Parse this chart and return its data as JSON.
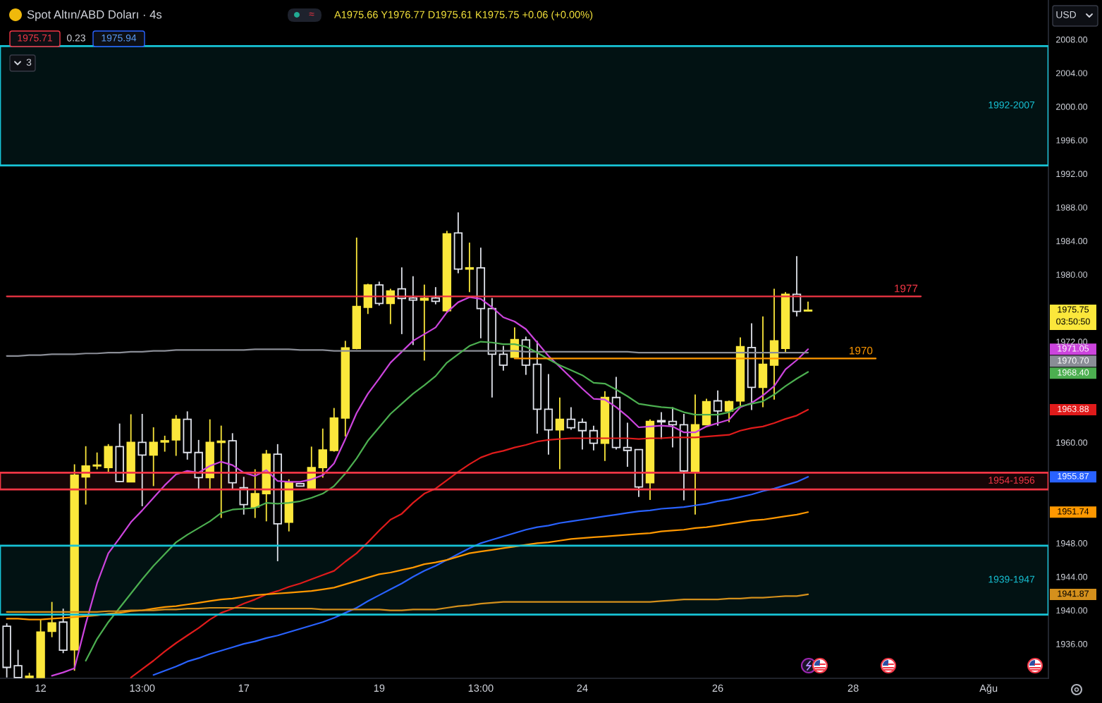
{
  "chart_data": {
    "type": "candlestick",
    "title": "Spot Altın/ABD Doları · 4s",
    "subtitle": "A1975.66 Y1976.77 D1975.61 K1975.75 +0.06 (+0.00%)",
    "annotations": [
      "1975.71",
      "0.23",
      "1975.94",
      "3",
      "USD",
      "≈",
      "03:50:50",
      "1971.05",
      "1970.70",
      "1968.40",
      "1963.88",
      "1955.87",
      "1951.74",
      "1941.87"
    ],
    "categories": [
      null,
      null,
      null,
      "12",
      null,
      null,
      null,
      null,
      null,
      null,
      null,
      null,
      "13:00",
      null,
      null,
      null,
      null,
      null,
      null,
      null,
      null,
      "17",
      null,
      null,
      null,
      null,
      null,
      null,
      null,
      null,
      null,
      null,
      null,
      "19",
      null,
      null,
      null,
      null,
      null,
      null,
      null,
      null,
      "13:00",
      null,
      null,
      null,
      null,
      null,
      null,
      null,
      null,
      "24",
      null,
      null,
      null,
      null,
      null,
      null,
      null,
      null,
      null,
      null,
      null,
      "26",
      null,
      null,
      null,
      null,
      null,
      null,
      null,
      null,
      null,
      null,
      null,
      "28",
      null,
      null,
      null,
      null,
      null,
      null,
      null,
      null,
      null,
      null,
      null,
      "Ağu",
      null,
      null,
      null,
      null,
      null
    ],
    "ohlc": [
      [
        1938.1,
        1938.45,
        1932.0,
        1933.2
      ],
      [
        1933.4,
        1935.3,
        1932.0,
        1932.0
      ],
      [
        1932.0,
        1932.55,
        1932.0,
        1932.15
      ],
      [
        1932.0,
        1938.95,
        1932.0,
        1937.4
      ],
      [
        1937.5,
        1941.0,
        1936.8,
        1938.5
      ],
      [
        1938.6,
        1940.2,
        1934.9,
        1935.25
      ],
      [
        1935.3,
        1957.4,
        1932.8,
        1956.1
      ],
      [
        1955.9,
        1959.55,
        1952.6,
        1957.2
      ],
      [
        1957.2,
        1958.8,
        1956.8,
        1957.3
      ],
      [
        1957.0,
        1959.8,
        1956.45,
        1959.5
      ],
      [
        1959.5,
        1962.25,
        1955.3,
        1955.35
      ],
      [
        1955.3,
        1963.35,
        1955.3,
        1960.0
      ],
      [
        1960.0,
        1963.4,
        1952.4,
        1958.5
      ],
      [
        1958.5,
        1961.8,
        1954.8,
        1960.0
      ],
      [
        1960.05,
        1960.8,
        1958.9,
        1960.2
      ],
      [
        1960.3,
        1963.25,
        1958.4,
        1962.75
      ],
      [
        1962.75,
        1963.7,
        1957.95,
        1958.8
      ],
      [
        1958.8,
        1960.3,
        1954.35,
        1955.8
      ],
      [
        1955.8,
        1962.75,
        1954.4,
        1960.0
      ],
      [
        1960.0,
        1962.0,
        1951.0,
        1960.15
      ],
      [
        1960.2,
        1961.1,
        1954.4,
        1955.2
      ],
      [
        1954.6,
        1955.9,
        1951.4,
        1952.6
      ],
      [
        1952.3,
        1956.8,
        1951.0,
        1953.9
      ],
      [
        1953.9,
        1959.1,
        1950.6,
        1958.6
      ],
      [
        1958.6,
        1959.8,
        1945.85,
        1950.3
      ],
      [
        1950.5,
        1955.6,
        1949.4,
        1955.2
      ],
      [
        1955.1,
        1955.1,
        1954.8,
        1954.8
      ],
      [
        1954.5,
        1959.5,
        1954.5,
        1957.0
      ],
      [
        1957.0,
        1961.65,
        1955.8,
        1959.1
      ],
      [
        1959.05,
        1964.1,
        1958.9,
        1962.9
      ],
      [
        1962.9,
        1972.1,
        1960.7,
        1971.25
      ],
      [
        1971.2,
        1984.4,
        1971.1,
        1976.2
      ],
      [
        1976.1,
        1978.9,
        1975.3,
        1978.75
      ],
      [
        1978.75,
        1979.15,
        1976.3,
        1976.55
      ],
      [
        1976.55,
        1978.3,
        1974.1,
        1978.05
      ],
      [
        1978.3,
        1980.85,
        1972.9,
        1977.15
      ],
      [
        1977.2,
        1979.8,
        1971.6,
        1976.95
      ],
      [
        1976.95,
        1978.8,
        1969.75,
        1977.15
      ],
      [
        1977.2,
        1978.5,
        1976.45,
        1976.8
      ],
      [
        1975.7,
        1985.2,
        1975.55,
        1984.85
      ],
      [
        1984.95,
        1987.4,
        1980.15,
        1980.65
      ],
      [
        1980.65,
        1983.8,
        1977.9,
        1980.8
      ],
      [
        1980.8,
        1983.2,
        1972.4,
        1975.95
      ],
      [
        1975.95,
        1977.2,
        1965.35,
        1970.5
      ],
      [
        1970.5,
        1971.5,
        1968.55,
        1969.2
      ],
      [
        1970.15,
        1973.7,
        1970.15,
        1972.25
      ],
      [
        1972.2,
        1972.6,
        1968.05,
        1969.2
      ],
      [
        1969.3,
        1972.1,
        1961.05,
        1963.95
      ],
      [
        1963.95,
        1968.15,
        1958.55,
        1961.5
      ],
      [
        1961.5,
        1965.35,
        1956.8,
        1962.75
      ],
      [
        1962.75,
        1964.2,
        1961.5,
        1961.75
      ],
      [
        1962.4,
        1962.85,
        1959.15,
        1961.4
      ],
      [
        1961.4,
        1962.0,
        1959.05,
        1959.9
      ],
      [
        1959.9,
        1966.1,
        1957.8,
        1965.35
      ],
      [
        1965.35,
        1967.8,
        1959.15,
        1959.4
      ],
      [
        1959.4,
        1962.35,
        1957.1,
        1959.05
      ],
      [
        1959.15,
        1959.2,
        1953.5,
        1954.7
      ],
      [
        1955.2,
        1962.75,
        1953.15,
        1962.5
      ],
      [
        1962.6,
        1963.6,
        1960.4,
        1962.45
      ],
      [
        1962.5,
        1964.2,
        1959.4,
        1962.1
      ],
      [
        1962.1,
        1963.4,
        1953.1,
        1956.6
      ],
      [
        1956.5,
        1965.7,
        1951.4,
        1962.1
      ],
      [
        1962.1,
        1965.2,
        1962.1,
        1964.85
      ],
      [
        1964.95,
        1966.2,
        1962.0,
        1963.75
      ],
      [
        1963.75,
        1965.0,
        1962.4,
        1964.85
      ],
      [
        1964.95,
        1972.5,
        1964.2,
        1971.4
      ],
      [
        1971.3,
        1974.2,
        1963.85,
        1966.55
      ],
      [
        1966.55,
        1975.0,
        1964.2,
        1969.3
      ],
      [
        1969.2,
        1978.3,
        1965.1,
        1972.1
      ],
      [
        1971.2,
        1977.9,
        1970.75,
        1977.65
      ],
      [
        1977.65,
        1982.2,
        1975.0,
        1975.6
      ],
      [
        1975.66,
        1976.77,
        1975.61,
        1975.75
      ],
      null,
      null,
      null,
      null,
      null,
      null,
      null,
      null,
      null,
      null,
      null,
      null,
      null,
      null,
      null,
      null,
      null,
      null,
      null,
      null,
      null
    ],
    "colors": [
      "#e0e3eb",
      "#e0e3eb",
      "#fbe73b",
      "#fbe73b",
      "#fbe73b",
      "#e0e3eb",
      "#fbe73b",
      "#fbe73b",
      "#fbe73b",
      "#fbe73b",
      "#e0e3eb",
      "#fbe73b",
      "#e0e3eb",
      "#fbe73b",
      "#fbe73b",
      "#fbe73b",
      "#e0e3eb",
      "#e0e3eb",
      "#fbe73b",
      "#fbe73b",
      "#e0e3eb",
      "#e0e3eb",
      "#fbe73b",
      "#fbe73b",
      "#e0e3eb",
      "#fbe73b",
      "#e0e3eb",
      "#fbe73b",
      "#fbe73b",
      "#fbe73b",
      "#fbe73b",
      "#fbe73b",
      "#fbe73b",
      "#e0e3eb",
      "#fbe73b",
      "#e0e3eb",
      "#e0e3eb",
      "#fbe73b",
      "#e0e3eb",
      "#fbe73b",
      "#e0e3eb",
      "#fbe73b",
      "#e0e3eb",
      "#e0e3eb",
      "#e0e3eb",
      "#fbe73b",
      "#e0e3eb",
      "#e0e3eb",
      "#e0e3eb",
      "#fbe73b",
      "#e0e3eb",
      "#e0e3eb",
      "#e0e3eb",
      "#fbe73b",
      "#e0e3eb",
      "#e0e3eb",
      "#e0e3eb",
      "#fbe73b",
      "#e0e3eb",
      "#e0e3eb",
      "#e0e3eb",
      "#fbe73b",
      "#fbe73b",
      "#e0e3eb",
      "#fbe73b",
      "#fbe73b",
      "#e0e3eb",
      "#fbe73b",
      "#fbe73b",
      "#fbe73b",
      "#e0e3eb",
      "#fbe73b",
      null,
      null,
      null,
      null,
      null,
      null,
      null,
      null,
      null,
      null,
      null,
      null,
      null,
      null,
      null,
      null,
      null,
      null,
      null,
      null,
      null
    ],
    "value_labels": [
      null,
      null,
      null,
      null,
      null,
      null,
      null,
      null,
      null,
      null,
      null,
      null,
      null,
      null,
      null,
      null,
      null,
      null,
      null,
      null,
      null,
      null,
      null,
      null,
      null,
      null,
      null,
      null,
      null,
      null,
      null,
      null,
      null,
      null,
      null,
      null,
      null,
      null,
      null,
      null,
      null,
      null,
      null,
      null,
      null,
      null,
      null,
      null,
      null,
      null,
      null,
      null,
      null,
      null,
      null,
      null,
      null,
      null,
      null,
      null,
      null,
      null,
      null,
      null,
      null,
      null,
      null,
      null,
      null,
      null,
      null,
      "1975.75",
      null,
      null,
      null,
      null,
      null,
      null,
      null,
      null,
      null,
      null,
      null,
      null,
      null,
      null,
      null,
      null,
      null,
      null,
      null,
      null,
      null
    ],
    "series": [
      {
        "type": "line",
        "color": "#cc44dd",
        "values": [
          null,
          null,
          null,
          null,
          1932.2,
          1932.6,
          1933.1,
          1938.4,
          1943.2,
          1946.8,
          1948.6,
          1950.5,
          1951.9,
          1953.4,
          1954.9,
          1956.2,
          1956.6,
          1956.4,
          1957.2,
          1957.7,
          1957.3,
          1956.4,
          1956.0,
          1956.7,
          1955.4,
          1955.3,
          1955.3,
          1955.6,
          1956.1,
          1957.5,
          1960.4,
          1963.5,
          1965.8,
          1967.6,
          1969.5,
          1970.8,
          1972.1,
          1972.9,
          1973.7,
          1975.5,
          1976.7,
          1977.3,
          1977.1,
          1976.1,
          1974.9,
          1974.4,
          1973.5,
          1971.9,
          1970.3,
          1969.0,
          1967.7,
          1966.4,
          1965.2,
          1965.1,
          1964.2,
          1963.1,
          1961.8,
          1961.9,
          1962.0,
          1961.9,
          1961.2,
          1961.2,
          1961.9,
          1962.3,
          1962.7,
          1964.2,
          1964.7,
          1965.6,
          1966.7,
          1968.7,
          1969.8,
          1971.1,
          null,
          null,
          null,
          null,
          null,
          null,
          null,
          null,
          null,
          null,
          null,
          null,
          null,
          null,
          null,
          null,
          null,
          null,
          null,
          null,
          null
        ]
      },
      {
        "type": "line",
        "color": "#8a8d96",
        "values": [
          1970.3,
          1970.3,
          1970.4,
          1970.4,
          1970.5,
          1970.5,
          1970.5,
          1970.6,
          1970.6,
          1970.7,
          1970.7,
          1970.8,
          1970.8,
          1970.9,
          1970.9,
          1971.0,
          1971.0,
          1971.0,
          1971.0,
          1971.0,
          1971.0,
          1971.0,
          1971.1,
          1971.1,
          1971.1,
          1971.1,
          1971.0,
          1971.0,
          1971.0,
          1970.9,
          1970.9,
          1970.9,
          1970.9,
          1970.9,
          1970.9,
          1970.9,
          1970.9,
          1970.9,
          1970.9,
          1970.9,
          1970.9,
          1970.9,
          1970.9,
          1970.9,
          1970.9,
          1970.9,
          1970.8,
          1970.8,
          1970.8,
          1970.8,
          1970.8,
          1970.8,
          1970.8,
          1970.8,
          1970.8,
          1970.8,
          1970.7,
          1970.7,
          1970.7,
          1970.7,
          1970.7,
          1970.7,
          1970.7,
          1970.7,
          1970.7,
          1970.7,
          1970.7,
          1970.7,
          1970.7,
          1970.7,
          1970.7,
          1970.7,
          null,
          null,
          null,
          null,
          null,
          null,
          null,
          null,
          null,
          null,
          null,
          null,
          null,
          null,
          null,
          null,
          null,
          null,
          null,
          null,
          null
        ]
      },
      {
        "type": "line",
        "color": "#4caf50",
        "values": [
          null,
          null,
          null,
          null,
          null,
          null,
          null,
          1934.0,
          1936.6,
          1938.6,
          1940.3,
          1942.0,
          1943.7,
          1945.3,
          1946.7,
          1948.1,
          1949.0,
          1949.8,
          1950.6,
          1951.6,
          1952.0,
          1952.1,
          1952.2,
          1952.8,
          1952.7,
          1952.8,
          1953.0,
          1953.4,
          1953.9,
          1954.8,
          1956.3,
          1958.1,
          1960.2,
          1961.8,
          1963.4,
          1964.6,
          1965.8,
          1966.8,
          1967.9,
          1969.5,
          1970.5,
          1971.5,
          1972.0,
          1971.9,
          1971.7,
          1971.7,
          1971.4,
          1970.7,
          1969.9,
          1969.2,
          1968.6,
          1968.0,
          1967.1,
          1967.0,
          1966.3,
          1965.5,
          1964.6,
          1964.4,
          1964.2,
          1964.1,
          1963.6,
          1963.3,
          1963.3,
          1963.3,
          1963.6,
          1964.3,
          1964.6,
          1964.9,
          1965.7,
          1966.7,
          1967.6,
          1968.4,
          null,
          null,
          null,
          null,
          null,
          null,
          null,
          null,
          null,
          null,
          null,
          null,
          null,
          null,
          null,
          null,
          null,
          null,
          null,
          null,
          null
        ]
      },
      {
        "type": "line",
        "color": "#e01b1b",
        "values": [
          null,
          null,
          null,
          null,
          null,
          null,
          null,
          null,
          null,
          null,
          null,
          1932.0,
          1933.0,
          1934.0,
          1935.1,
          1936.1,
          1937.0,
          1937.9,
          1938.9,
          1939.7,
          1940.2,
          1940.8,
          1941.3,
          1941.9,
          1942.3,
          1942.8,
          1943.2,
          1943.7,
          1944.2,
          1944.7,
          1945.8,
          1946.8,
          1948.1,
          1949.5,
          1950.8,
          1951.5,
          1952.8,
          1953.9,
          1954.5,
          1955.5,
          1956.5,
          1957.4,
          1958.2,
          1958.7,
          1959.0,
          1959.4,
          1959.7,
          1960.1,
          1960.3,
          1960.4,
          1960.5,
          1960.5,
          1960.5,
          1960.5,
          1960.5,
          1960.5,
          1960.4,
          1960.5,
          1960.5,
          1960.6,
          1960.6,
          1960.6,
          1960.7,
          1960.8,
          1960.9,
          1961.4,
          1961.7,
          1961.9,
          1962.3,
          1962.8,
          1963.2,
          1963.9,
          null,
          null,
          null,
          null,
          null,
          null,
          null,
          null,
          null,
          null,
          null,
          null,
          null,
          null,
          null,
          null,
          null,
          null,
          null,
          null,
          null
        ]
      },
      {
        "type": "line",
        "color": "#2962ff",
        "values": [
          null,
          null,
          null,
          null,
          null,
          null,
          null,
          null,
          null,
          null,
          null,
          null,
          null,
          1932.3,
          1932.8,
          1933.3,
          1933.9,
          1934.3,
          1934.8,
          1935.2,
          1935.6,
          1936.0,
          1936.3,
          1936.7,
          1937.0,
          1937.4,
          1937.8,
          1938.2,
          1938.6,
          1939.1,
          1939.7,
          1940.3,
          1941.1,
          1941.8,
          1942.5,
          1943.2,
          1944.0,
          1944.7,
          1945.3,
          1946.0,
          1946.7,
          1947.4,
          1948.0,
          1948.4,
          1948.8,
          1949.2,
          1949.6,
          1949.9,
          1950.1,
          1950.4,
          1950.6,
          1950.8,
          1951.0,
          1951.2,
          1951.4,
          1951.6,
          1951.8,
          1951.9,
          1952.1,
          1952.2,
          1952.3,
          1952.5,
          1952.7,
          1953.0,
          1953.2,
          1953.5,
          1953.8,
          1954.2,
          1954.5,
          1954.9,
          1955.3,
          1955.9,
          null,
          null,
          null,
          null,
          null,
          null,
          null,
          null,
          null,
          null,
          null,
          null,
          null,
          null,
          null,
          null,
          null,
          null,
          null,
          null,
          null
        ]
      },
      {
        "type": "line",
        "color": "#ff9800",
        "values": [
          1939.0,
          1939.0,
          1938.9,
          1938.9,
          1939.0,
          1939.1,
          1939.2,
          1939.3,
          1939.4,
          1939.6,
          1939.7,
          1939.9,
          1940.0,
          1940.2,
          1940.4,
          1940.5,
          1940.7,
          1940.9,
          1941.1,
          1941.3,
          1941.4,
          1941.6,
          1941.8,
          1941.9,
          1942.0,
          1942.1,
          1942.2,
          1942.3,
          1942.5,
          1942.7,
          1943.1,
          1943.5,
          1943.9,
          1944.3,
          1944.5,
          1944.8,
          1945.1,
          1945.5,
          1945.7,
          1946.0,
          1946.4,
          1946.8,
          1947.0,
          1947.2,
          1947.4,
          1947.6,
          1947.8,
          1948.0,
          1948.1,
          1948.3,
          1948.5,
          1948.6,
          1948.7,
          1948.8,
          1948.9,
          1949.0,
          1949.1,
          1949.2,
          1949.4,
          1949.5,
          1949.6,
          1949.8,
          1949.9,
          1950.1,
          1950.3,
          1950.5,
          1950.7,
          1950.8,
          1951.0,
          1951.2,
          1951.4,
          1951.7,
          null,
          null,
          null,
          null,
          null,
          null,
          null,
          null,
          null,
          null,
          null,
          null,
          null,
          null,
          null,
          null,
          null,
          null,
          null,
          null,
          null
        ]
      },
      {
        "type": "line",
        "color": "#d4901c",
        "values": [
          1939.8,
          1939.8,
          1939.8,
          1939.8,
          1939.8,
          1939.8,
          1939.8,
          1939.8,
          1939.8,
          1939.9,
          1939.9,
          1940.0,
          1940.0,
          1940.0,
          1940.1,
          1940.1,
          1940.2,
          1940.2,
          1940.3,
          1940.3,
          1940.3,
          1940.3,
          1940.2,
          1940.2,
          1940.2,
          1940.2,
          1940.2,
          1940.2,
          1940.1,
          1940.1,
          1940.1,
          1940.1,
          1940.1,
          1940.1,
          1940.0,
          1940.0,
          1940.1,
          1940.1,
          1940.1,
          1940.3,
          1940.5,
          1940.6,
          1940.8,
          1940.9,
          1941.0,
          1941.0,
          1941.0,
          1941.0,
          1941.0,
          1941.0,
          1941.0,
          1941.0,
          1941.0,
          1941.0,
          1941.0,
          1941.0,
          1941.0,
          1941.0,
          1941.1,
          1941.2,
          1941.3,
          1941.3,
          1941.3,
          1941.3,
          1941.4,
          1941.4,
          1941.5,
          1941.5,
          1941.6,
          1941.7,
          1941.7,
          1941.9,
          null,
          null,
          null,
          null,
          null,
          null,
          null,
          null,
          null,
          null,
          null,
          null,
          null,
          null,
          null,
          null,
          null,
          null,
          null,
          null,
          null
        ]
      },
      {
        "type": "line",
        "name": "1977",
        "color": "#f23645",
        "values": [
          1977.4,
          1977.4,
          1977.4,
          1977.4,
          1977.4,
          1977.4,
          1977.4,
          1977.4,
          1977.4,
          1977.4,
          1977.4,
          1977.4,
          1977.4,
          1977.4,
          1977.4,
          1977.4,
          1977.4,
          1977.4,
          1977.4,
          1977.4,
          1977.4,
          1977.4,
          1977.4,
          1977.4,
          1977.4,
          1977.4,
          1977.4,
          1977.4,
          1977.4,
          1977.4,
          1977.4,
          1977.4,
          1977.4,
          1977.4,
          1977.4,
          1977.4,
          1977.4,
          1977.4,
          1977.4,
          1977.4,
          1977.4,
          1977.4,
          1977.4,
          1977.4,
          1977.4,
          1977.4,
          1977.4,
          1977.4,
          1977.4,
          1977.4,
          1977.4,
          1977.4,
          1977.4,
          1977.4,
          1977.4,
          1977.4,
          1977.4,
          1977.4,
          1977.4,
          1977.4,
          1977.4,
          1977.4,
          1977.4,
          1977.4,
          1977.4,
          1977.4,
          1977.4,
          1977.4,
          1977.4,
          1977.4,
          1977.4,
          1977.4,
          1977.4,
          1977.4,
          1977.4,
          1977.4,
          1977.4,
          1977.4,
          1977.4,
          1977.4,
          1977.4,
          1977.4,
          null,
          null,
          null,
          null,
          null,
          null,
          null,
          null,
          null,
          null,
          null
        ]
      },
      {
        "type": "line",
        "name": "1970",
        "color": "#ff9800",
        "values": [
          null,
          null,
          null,
          null,
          null,
          null,
          null,
          null,
          null,
          null,
          null,
          null,
          null,
          null,
          null,
          null,
          null,
          null,
          null,
          null,
          null,
          null,
          null,
          null,
          null,
          null,
          null,
          null,
          null,
          null,
          null,
          null,
          null,
          null,
          null,
          null,
          null,
          null,
          null,
          null,
          null,
          null,
          null,
          null,
          null,
          1970.0,
          1970.0,
          1970.0,
          1970.0,
          1970.0,
          1970.0,
          1970.0,
          1970.0,
          1970.0,
          1970.0,
          1970.0,
          1970.0,
          1970.0,
          1970.0,
          1970.0,
          1970.0,
          1970.0,
          1970.0,
          1970.0,
          1970.0,
          1970.0,
          1970.0,
          1970.0,
          1970.0,
          1970.0,
          1970.0,
          1970.0,
          1970.0,
          1970.0,
          1970.0,
          1970.0,
          1970.0,
          1970.0,
          null,
          null,
          null,
          null,
          null,
          null,
          null,
          null,
          null,
          null,
          null,
          null,
          null,
          null,
          null
        ]
      }
    ],
    "bands": [
      {
        "axis": "y",
        "from": 1993.0,
        "to": 2007.2,
        "label": "1992-2007",
        "color": "#17c3d6"
      },
      {
        "axis": "y",
        "from": 1954.4,
        "to": 1956.4,
        "label": "1954-1956",
        "color": "#f23645"
      },
      {
        "axis": "y",
        "from": 1939.5,
        "to": 1947.7,
        "label": "1939-1947",
        "color": "#17c3d6"
      }
    ],
    "ylim": [
      1931.9,
      2012.7
    ],
    "yticks": [
      {
        "value": 1936,
        "label": "1936.00"
      },
      {
        "value": 1940,
        "label": "1940.00"
      },
      {
        "value": 1944,
        "label": "1944.00"
      },
      {
        "value": 1948,
        "label": "1948.00"
      },
      {
        "value": 1960,
        "label": "1960.00"
      },
      {
        "value": 1972,
        "label": "1972.00"
      },
      {
        "value": 1980,
        "label": "1980.00"
      },
      {
        "value": 1984,
        "label": "1984.00"
      },
      {
        "value": 1988,
        "label": "1988.00"
      },
      {
        "value": 1992,
        "label": "1992.00"
      },
      {
        "value": 1996,
        "label": "1996.00"
      },
      {
        "value": 2000,
        "label": "2000.00"
      },
      {
        "value": 2004,
        "label": "2004.00"
      },
      {
        "value": 2008,
        "label": "2008.00"
      }
    ]
  }
}
